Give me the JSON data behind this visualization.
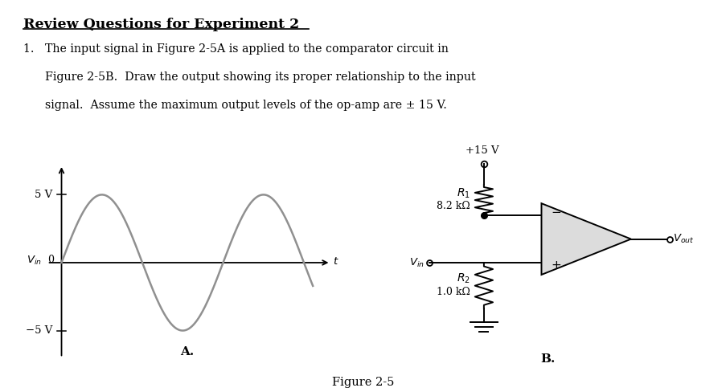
{
  "title": "Review Questions for Experiment 2",
  "question_lines": [
    "1.   The input signal in Figure 2-5A is applied to the comparator circuit in",
    "      Figure 2-5B.  Draw the output showing its proper relationship to the input",
    "      signal.  Assume the maximum output levels of the op-amp are ± 15 V."
  ],
  "figure_caption": "Figure 2-5",
  "label_A": "A.",
  "label_B": "B.",
  "circuit_plus15": "+15 V",
  "circuit_R1_val": "8.2 kΩ",
  "circuit_R2_val": "1.0 kΩ",
  "bg_color": "#e8e8e8",
  "page_bg": "#ffffff",
  "line_color": "#000000",
  "sine_color": "#909090",
  "font_family": "DejaVu Serif"
}
